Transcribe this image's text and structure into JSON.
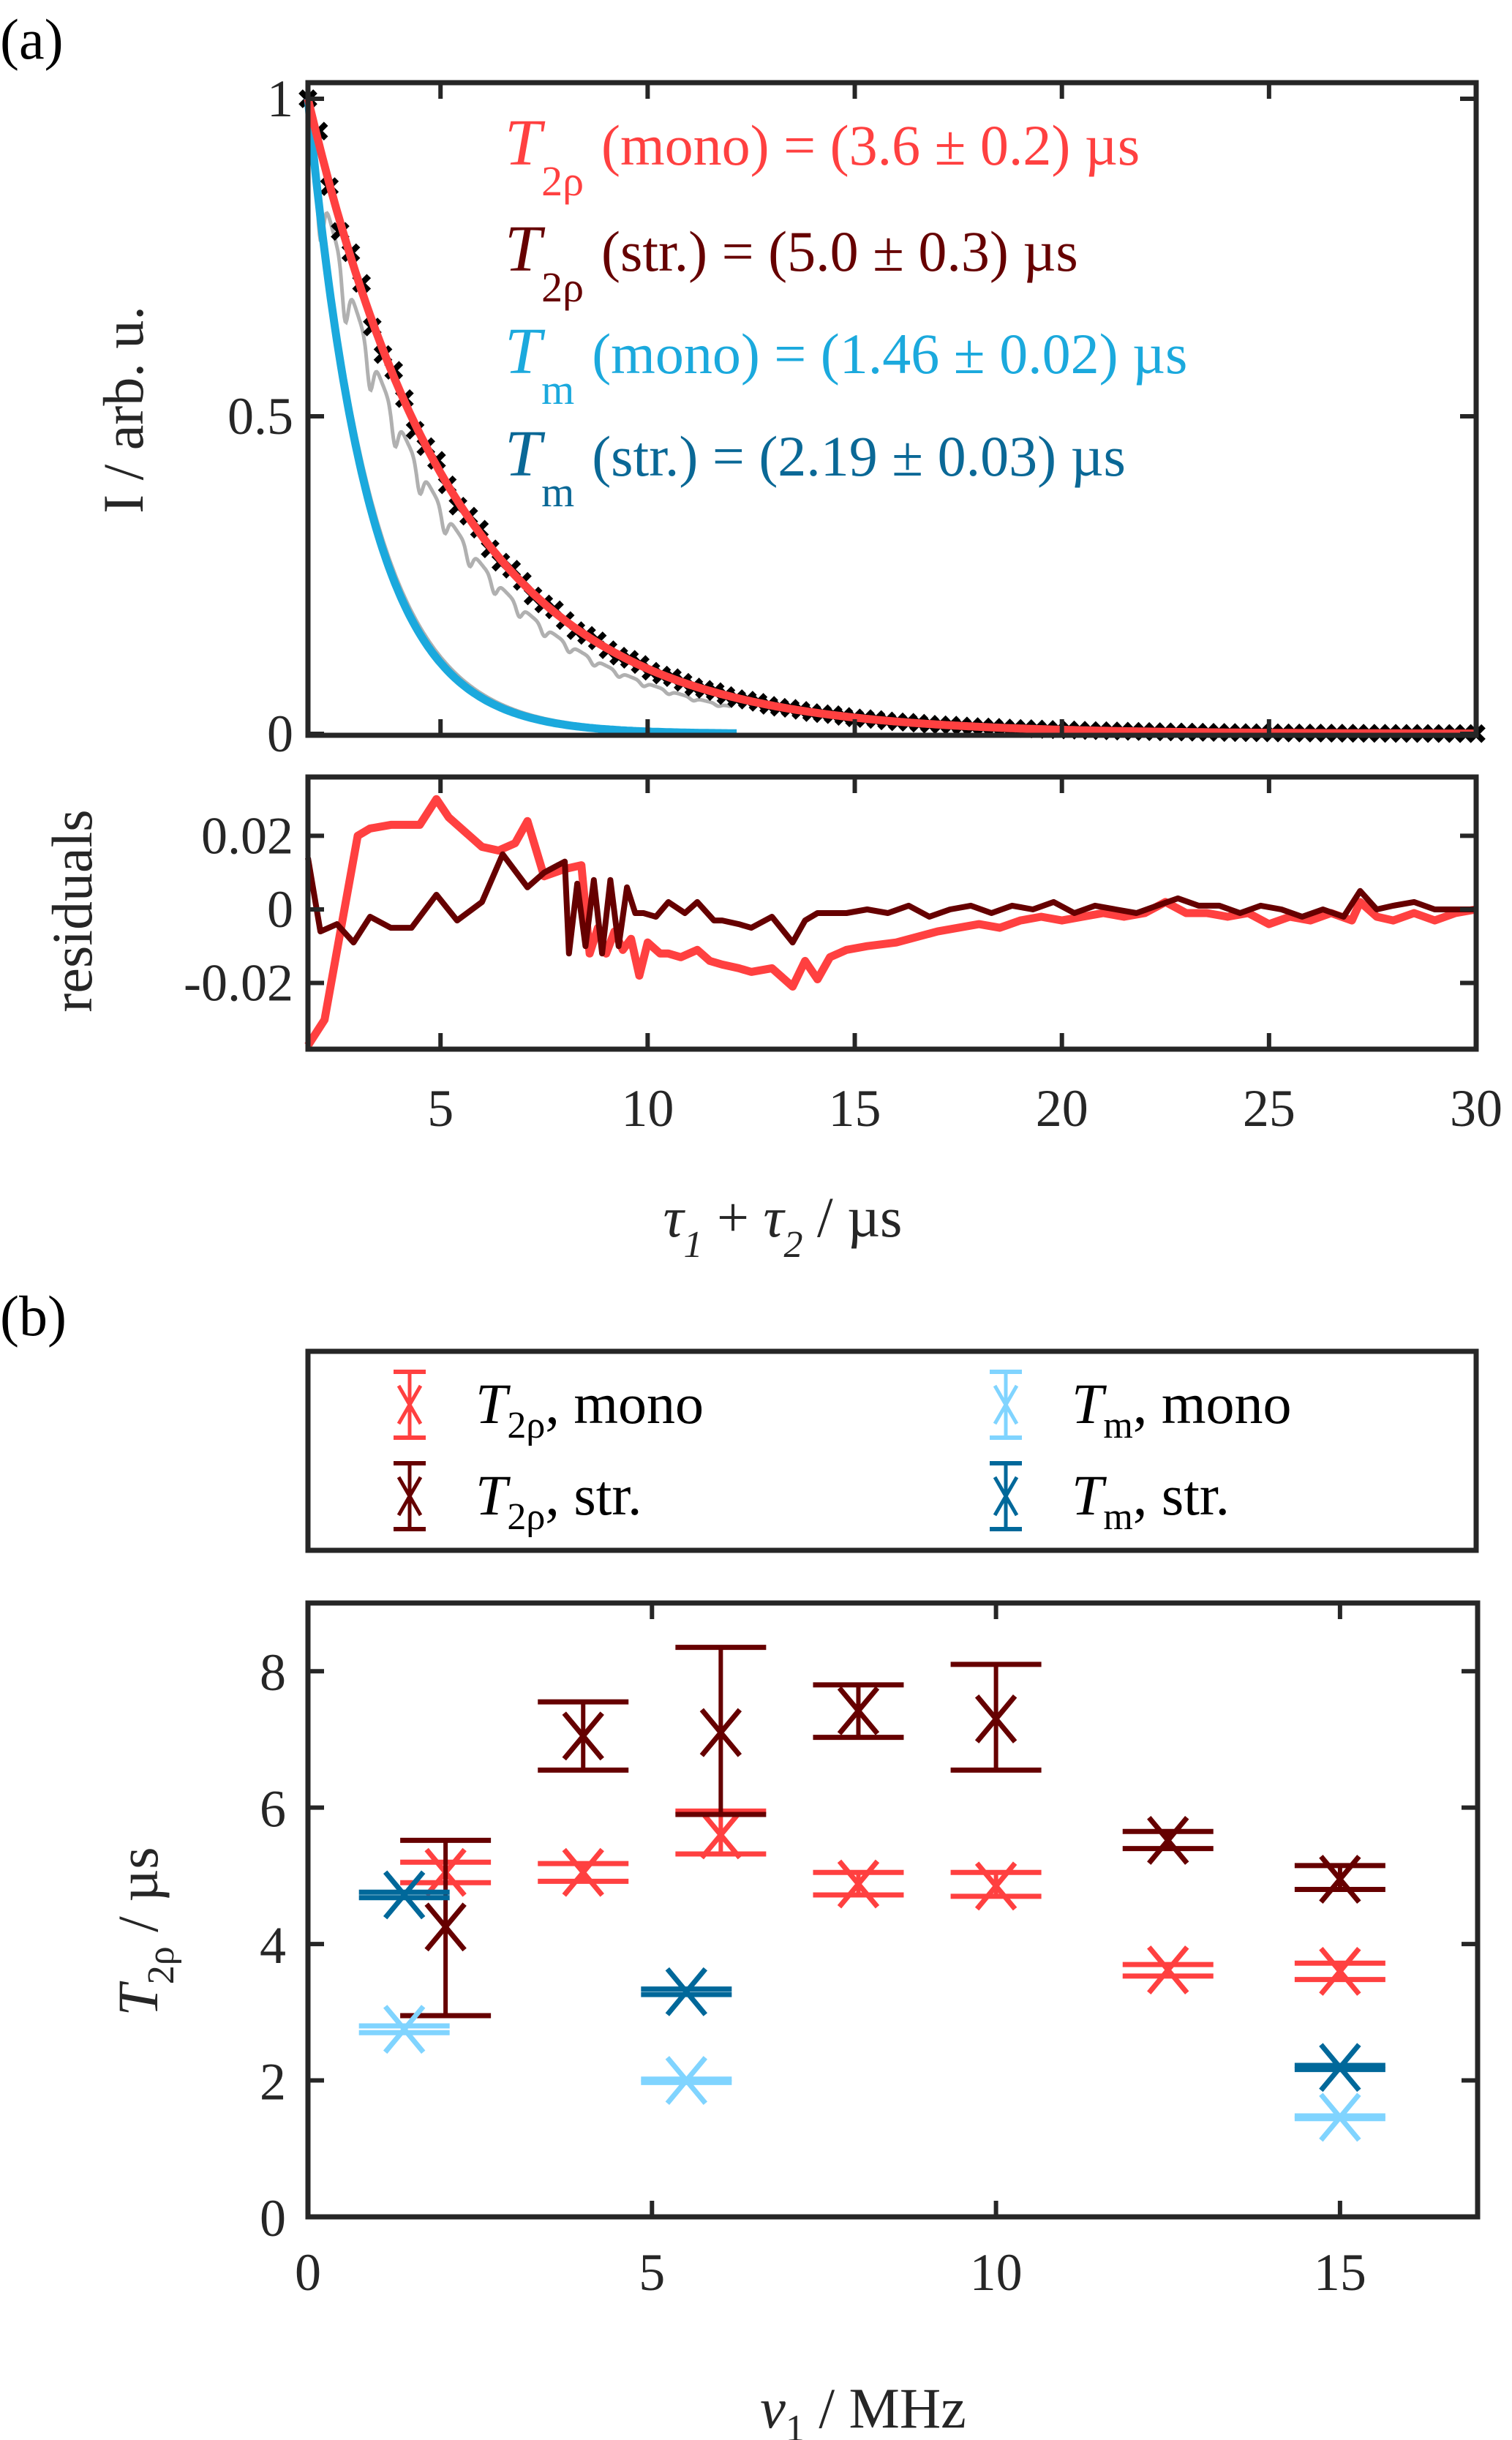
{
  "figure": {
    "panel_a_label": "(a)",
    "panel_b_label": "(b)"
  },
  "colors": {
    "t2rho_mono": "#ff4040",
    "t2rho_str": "#660000",
    "tm_mono_fit": "#1ba9dd",
    "tm_str_text": "#0a6896",
    "tm_mono_point": "#80d4ff",
    "tm_str_point": "#00689a",
    "data_black": "#000000",
    "data_gray": "#b0b0b0",
    "axis": "#262626"
  },
  "chart_data": [
    {
      "id": "a_top",
      "type": "line",
      "title": "",
      "xlabel": "τ1 + τ2 / µs",
      "ylabel": "I / arb. u.",
      "xlim": [
        1.8,
        30
      ],
      "ylim": [
        0,
        1
      ],
      "xticks": [
        5,
        10,
        15,
        20,
        25,
        30
      ],
      "yticks": [
        0,
        0.5,
        1
      ],
      "ytick_labels": [
        "0",
        "0.5",
        "1"
      ],
      "grid": false,
      "annotations": [
        {
          "symbol": "T",
          "sub": "2ρ",
          "text": "(mono) = (3.6 ± 0.2) µs",
          "color_key": "t2rho_mono"
        },
        {
          "symbol": "T",
          "sub": "2ρ",
          "text": "(str.) = (5.0 ± 0.3) µs",
          "color_key": "t2rho_str"
        },
        {
          "symbol": "T",
          "sub": "m",
          "text": "(mono) = (1.46 ± 0.02) µs",
          "color_key": "tm_mono_fit"
        },
        {
          "symbol": "T",
          "sub": "m",
          "text": "(str.) = (2.19 ± 0.03) µs",
          "color_key": "tm_str_text"
        }
      ],
      "series": [
        {
          "name": "T2ρ data (crosses)",
          "kind": "markers",
          "decay_us": 3.6,
          "x_start": 1.8,
          "x_end": 30,
          "n_points": 110
        },
        {
          "name": "T2ρ fit mono",
          "kind": "line",
          "decay_us": 3.6,
          "x_start": 1.8,
          "x_end": 30
        },
        {
          "name": "Tm fit mono",
          "kind": "line",
          "decay_us": 1.46,
          "x_start": 1.8,
          "x_end": 12.2
        },
        {
          "name": "raw echo (gray, modulated)",
          "kind": "line",
          "decay_us": 3.6,
          "modulation_period_us": 0.6,
          "x_start": 1.8,
          "x_end": 12
        }
      ]
    },
    {
      "id": "a_residuals",
      "type": "line",
      "xlabel": "τ1 + τ2 / µs",
      "ylabel": "residuals",
      "xlim": [
        1.8,
        30
      ],
      "ylim": [
        -0.038,
        0.036
      ],
      "yticks": [
        -0.02,
        0,
        0.02
      ],
      "ytick_labels": [
        "-0.02",
        "0",
        "0.02"
      ],
      "xticks": [
        5,
        10,
        15,
        20,
        25,
        30
      ],
      "xtick_labels": [
        "5",
        "10",
        "15",
        "20",
        "25",
        "30"
      ],
      "series": [
        {
          "name": "mono residual",
          "color_key": "t2rho_mono",
          "x": [
            1.8,
            2.2,
            2.6,
            3.0,
            3.3,
            3.8,
            4.5,
            4.9,
            5.2,
            6.0,
            6.4,
            6.8,
            7.1,
            7.5,
            8.0,
            8.4,
            8.6,
            8.8,
            9.0,
            9.2,
            9.4,
            9.6,
            9.8,
            10.0,
            10.3,
            10.5,
            10.8,
            11.2,
            11.5,
            11.8,
            12.2,
            12.5,
            13.0,
            13.5,
            13.8,
            14.1,
            14.4,
            14.8,
            15.3,
            16.0,
            17.0,
            18.0,
            18.5,
            19.0,
            19.5,
            20.0,
            20.5,
            21.0,
            21.5,
            22.0,
            22.5,
            23.0,
            23.5,
            24.0,
            24.5,
            25.0,
            25.5,
            26.0,
            26.5,
            27.0,
            27.2,
            27.6,
            28.0,
            28.5,
            29.0,
            29.5,
            30.0
          ],
          "y": [
            -0.037,
            -0.03,
            -0.005,
            0.02,
            0.022,
            0.023,
            0.023,
            0.03,
            0.025,
            0.017,
            0.016,
            0.018,
            0.024,
            0.009,
            0.011,
            0.012,
            -0.012,
            -0.005,
            -0.012,
            -0.006,
            -0.011,
            -0.008,
            -0.018,
            -0.009,
            -0.012,
            -0.012,
            -0.013,
            -0.011,
            -0.014,
            -0.015,
            -0.016,
            -0.017,
            -0.016,
            -0.021,
            -0.014,
            -0.019,
            -0.013,
            -0.011,
            -0.01,
            -0.009,
            -0.006,
            -0.004,
            -0.005,
            -0.003,
            -0.002,
            -0.003,
            -0.002,
            -0.001,
            -0.002,
            -0.001,
            0.002,
            -0.001,
            -0.001,
            -0.002,
            -0.001,
            -0.004,
            -0.002,
            -0.003,
            -0.001,
            -0.003,
            0.002,
            -0.002,
            -0.003,
            -0.001,
            -0.003,
            -0.001,
            0.0
          ],
          "stroke_width": "thick"
        },
        {
          "name": "stretched residual",
          "color_key": "t2rho_str",
          "x": [
            1.8,
            2.1,
            2.5,
            2.9,
            3.3,
            3.8,
            4.3,
            4.9,
            5.4,
            6.0,
            6.5,
            7.1,
            7.5,
            8.0,
            8.1,
            8.3,
            8.5,
            8.7,
            8.9,
            9.1,
            9.3,
            9.5,
            9.7,
            9.9,
            10.2,
            10.5,
            10.9,
            11.2,
            11.6,
            11.8,
            12.2,
            12.5,
            13.0,
            13.5,
            13.8,
            14.1,
            14.4,
            14.8,
            15.3,
            15.8,
            16.3,
            16.8,
            17.3,
            17.8,
            18.3,
            18.8,
            19.3,
            19.8,
            20.3,
            20.8,
            21.3,
            21.8,
            22.3,
            22.8,
            23.3,
            23.8,
            24.3,
            24.8,
            25.3,
            25.8,
            26.3,
            26.8,
            27.2,
            27.6,
            28.0,
            28.5,
            29.0,
            29.5,
            30.0
          ],
          "y": [
            0.014,
            -0.006,
            -0.004,
            -0.009,
            -0.002,
            -0.005,
            -0.005,
            0.004,
            -0.003,
            0.002,
            0.015,
            0.006,
            0.01,
            0.013,
            -0.012,
            0.007,
            -0.01,
            0.008,
            -0.012,
            0.008,
            -0.01,
            0.006,
            -0.001,
            -0.001,
            -0.002,
            0.002,
            -0.001,
            0.002,
            -0.003,
            -0.003,
            -0.004,
            -0.005,
            -0.002,
            -0.009,
            -0.003,
            -0.001,
            -0.001,
            -0.001,
            0.0,
            -0.001,
            0.001,
            -0.002,
            0.0,
            0.001,
            -0.001,
            0.001,
            0.0,
            0.002,
            -0.001,
            0.001,
            0.0,
            -0.001,
            0.001,
            0.003,
            0.001,
            0.001,
            -0.001,
            0.001,
            0.0,
            -0.002,
            0.0,
            -0.002,
            0.005,
            0.0,
            0.001,
            0.002,
            0.0,
            0.0,
            0.0
          ]
        }
      ]
    },
    {
      "id": "b",
      "type": "scatter",
      "xlabel": "ν1 / MHz",
      "ylabel": "T2ρ / µs",
      "xlim": [
        0,
        17
      ],
      "ylim": [
        0,
        9
      ],
      "xticks": [
        0,
        5,
        10,
        15
      ],
      "yticks": [
        0,
        2,
        4,
        6,
        8
      ],
      "grid": false,
      "legend_position": "top (outside, above plot, boxed, 2 columns)",
      "series": [
        {
          "name": "T2ρ, mono",
          "label_symbol": "T",
          "label_sub": "2ρ",
          "label_rest": ", mono",
          "color_key": "t2rho_mono",
          "points": [
            {
              "x": 2,
              "y": 5.05,
              "lo": 4.9,
              "hi": 5.2
            },
            {
              "x": 4,
              "y": 5.05,
              "lo": 4.92,
              "hi": 5.18
            },
            {
              "x": 6,
              "y": 5.6,
              "lo": 5.32,
              "hi": 5.95
            },
            {
              "x": 8,
              "y": 4.88,
              "lo": 4.72,
              "hi": 5.05
            },
            {
              "x": 10,
              "y": 4.85,
              "lo": 4.7,
              "hi": 5.05
            },
            {
              "x": 12.5,
              "y": 3.62,
              "lo": 3.53,
              "hi": 3.7
            },
            {
              "x": 15,
              "y": 3.6,
              "lo": 3.48,
              "hi": 3.72
            }
          ]
        },
        {
          "name": "T2ρ, str.",
          "label_symbol": "T",
          "label_sub": "2ρ",
          "label_rest": ", str.",
          "color_key": "t2rho_str",
          "points": [
            {
              "x": 2,
              "y": 4.25,
              "lo": 2.95,
              "hi": 5.52
            },
            {
              "x": 4,
              "y": 7.05,
              "lo": 6.55,
              "hi": 7.55
            },
            {
              "x": 6,
              "y": 7.1,
              "lo": 5.9,
              "hi": 8.35
            },
            {
              "x": 8,
              "y": 7.42,
              "lo": 7.03,
              "hi": 7.8
            },
            {
              "x": 10,
              "y": 7.3,
              "lo": 6.55,
              "hi": 8.1
            },
            {
              "x": 12.5,
              "y": 5.52,
              "lo": 5.4,
              "hi": 5.65
            },
            {
              "x": 15,
              "y": 4.95,
              "lo": 4.8,
              "hi": 5.15
            }
          ]
        },
        {
          "name": "Tm, mono",
          "label_symbol": "T",
          "label_sub": "m",
          "label_rest": ", mono",
          "color_key": "tm_mono_point",
          "points": [
            {
              "x": 1.4,
              "y": 2.75,
              "lo": 2.7,
              "hi": 2.8
            },
            {
              "x": 5.5,
              "y": 2.0,
              "lo": 1.97,
              "hi": 2.02
            },
            {
              "x": 15,
              "y": 1.46,
              "lo": 1.44,
              "hi": 1.48
            }
          ]
        },
        {
          "name": "Tm, str.",
          "label_symbol": "T",
          "label_sub": "m",
          "label_rest": ", str.",
          "color_key": "tm_str_point",
          "points": [
            {
              "x": 1.4,
              "y": 4.72,
              "lo": 4.68,
              "hi": 4.76
            },
            {
              "x": 5.5,
              "y": 3.3,
              "lo": 3.26,
              "hi": 3.34
            },
            {
              "x": 15,
              "y": 2.19,
              "lo": 2.16,
              "hi": 2.22
            }
          ]
        }
      ]
    }
  ]
}
